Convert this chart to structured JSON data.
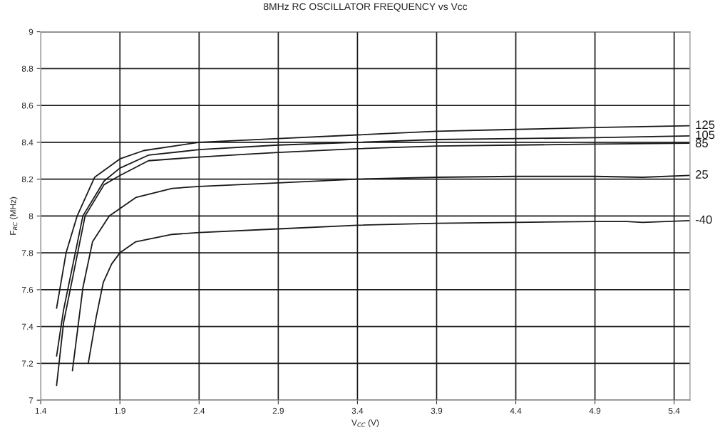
{
  "chart_data": {
    "type": "line",
    "title": "8MHz RC OSCILLATOR FREQUENCY vs Vcc",
    "xlabel": "V$_{CC}$ (V)",
    "ylabel": "F$_{RC}$ (MHz)",
    "xlim": [
      1.4,
      5.5
    ],
    "ylim": [
      7,
      9
    ],
    "xticks": [
      1.4,
      1.9,
      2.4,
      2.9,
      3.4,
      3.9,
      4.4,
      4.9,
      5.4
    ],
    "yticks": [
      7,
      7.2,
      7.4,
      7.6,
      7.8,
      8,
      8.2,
      8.4,
      8.6,
      8.8,
      9
    ],
    "grid": true,
    "legend": false,
    "marker": "none",
    "line_style": "solid",
    "series": [
      {
        "name": "125",
        "color": "#1a1a1a",
        "x": [
          1.5,
          1.56,
          1.63,
          1.74,
          1.9,
          2.05,
          2.4,
          2.9,
          3.4,
          3.9,
          4.4,
          4.9,
          5.5
        ],
        "values": [
          7.5,
          7.8,
          8.0,
          8.21,
          8.31,
          8.355,
          8.4,
          8.42,
          8.44,
          8.46,
          8.47,
          8.48,
          8.49
        ]
      },
      {
        "name": "105",
        "color": "#1a1a1a",
        "x": [
          1.5,
          1.544,
          1.666,
          1.8,
          1.9,
          2.08,
          2.4,
          2.9,
          3.4,
          3.9,
          4.4,
          4.9,
          5.5
        ],
        "values": [
          7.24,
          7.49,
          8.0,
          8.19,
          8.26,
          8.33,
          8.36,
          8.385,
          8.4,
          8.415,
          8.42,
          8.425,
          8.435
        ]
      },
      {
        "name": "85",
        "color": "#1a1a1a",
        "x": [
          1.5,
          1.544,
          1.68,
          1.8,
          1.9,
          2.08,
          2.4,
          2.7,
          2.9,
          3.4,
          3.9,
          4.4,
          4.9,
          5.5
        ],
        "values": [
          7.08,
          7.42,
          8.0,
          8.17,
          8.22,
          8.3,
          8.32,
          8.335,
          8.345,
          8.365,
          8.38,
          8.385,
          8.39,
          8.395
        ]
      },
      {
        "name": "25",
        "color": "#1a1a1a",
        "x": [
          1.6,
          1.666,
          1.727,
          1.833,
          1.9,
          2.0,
          2.23,
          2.4,
          2.9,
          3.4,
          3.9,
          4.4,
          4.9,
          5.2,
          5.5
        ],
        "values": [
          7.16,
          7.61,
          7.86,
          8.0,
          8.04,
          8.1,
          8.15,
          8.16,
          8.18,
          8.2,
          8.21,
          8.215,
          8.215,
          8.21,
          8.22
        ]
      },
      {
        "name": "-40",
        "color": "#1a1a1a",
        "x": [
          1.7,
          1.75,
          1.795,
          1.848,
          1.9,
          2.0,
          2.23,
          2.4,
          2.9,
          3.4,
          3.9,
          4.4,
          4.9,
          5.1,
          5.2,
          5.5
        ],
        "values": [
          7.2,
          7.45,
          7.64,
          7.74,
          7.8,
          7.86,
          7.9,
          7.91,
          7.93,
          7.95,
          7.96,
          7.965,
          7.97,
          7.97,
          7.965,
          7.975
        ]
      }
    ]
  }
}
